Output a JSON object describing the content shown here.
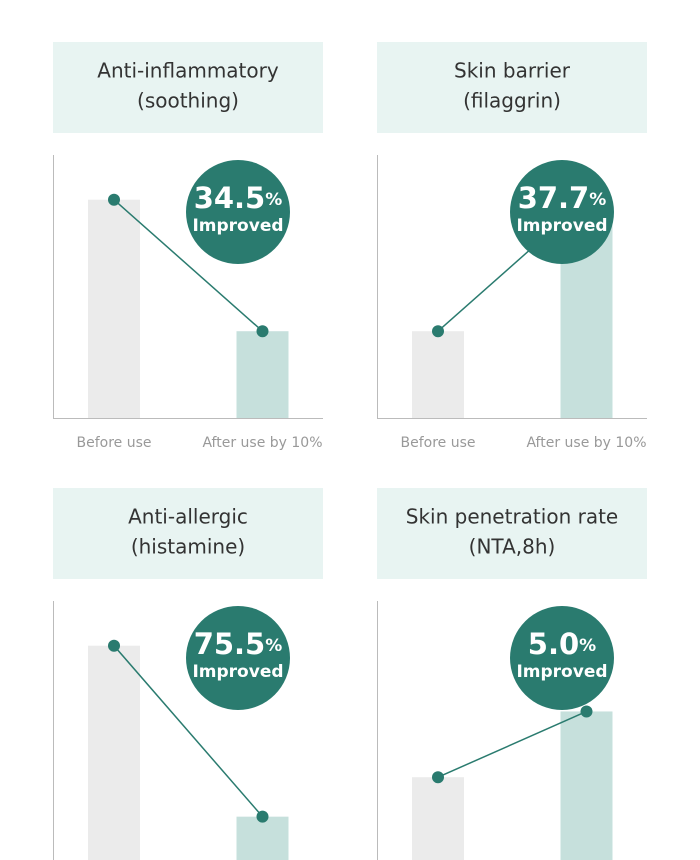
{
  "chart_data": [
    {
      "type": "bar",
      "title": "Anti-inflammatory",
      "subtitle": "(soothing)",
      "categories": [
        "Before use",
        "After use by 10%"
      ],
      "values": [
        83,
        33
      ],
      "colors": [
        "#ebebeb",
        "#c6e0dc"
      ],
      "line_color": "#2a7b6f",
      "ylim": [
        0,
        100
      ],
      "badge": {
        "number": "34.5",
        "unit": "%",
        "label": "Improved"
      }
    },
    {
      "type": "bar",
      "title": "Skin barrier",
      "subtitle": "(filaggrin)",
      "categories": [
        "Before use",
        "After use by 10%"
      ],
      "values": [
        33,
        83
      ],
      "colors": [
        "#ebebeb",
        "#c6e0dc"
      ],
      "line_color": "#2a7b6f",
      "ylim": [
        0,
        100
      ],
      "badge": {
        "number": "37.7",
        "unit": "%",
        "label": "Improved"
      }
    },
    {
      "type": "bar",
      "title": "Anti-allergic",
      "subtitle": "(histamine)",
      "values": [
        83,
        18
      ],
      "colors": [
        "#ebebeb",
        "#c6e0dc"
      ],
      "line_color": "#2a7b6f",
      "ylim": [
        0,
        100
      ],
      "badge": {
        "number": "75.5",
        "unit": "%",
        "label": "Improved"
      }
    },
    {
      "type": "bar",
      "title": "Skin penetration rate",
      "subtitle": "(NTA,8h)",
      "values": [
        33,
        58
      ],
      "colors": [
        "#ebebeb",
        "#c6e0dc"
      ],
      "line_color": "#2a7b6f",
      "ylim": [
        0,
        100
      ],
      "badge": {
        "number": "5.0",
        "unit": "%",
        "label": "Improved"
      }
    }
  ]
}
